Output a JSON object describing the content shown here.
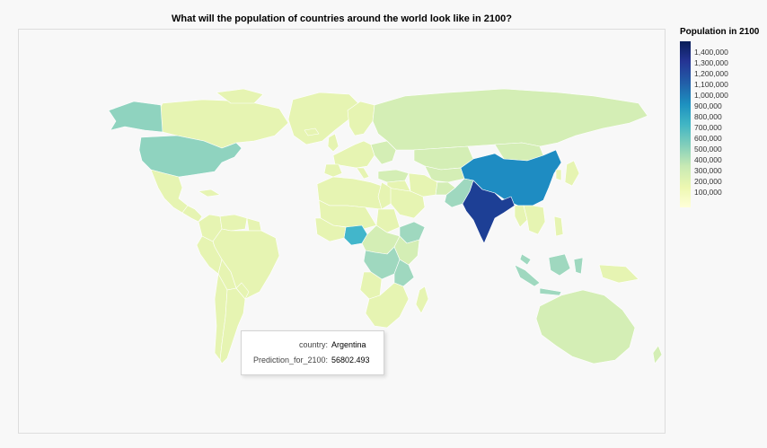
{
  "title": "What will the population of countries around the world look like in 2100?",
  "legend": {
    "title": "Population in 2100",
    "ticks": [
      "1,400,000",
      "1,300,000",
      "1,200,000",
      "1,100,000",
      "1,000,000",
      "900,000",
      "800,000",
      "700,000",
      "600,000",
      "500,000",
      "400,000",
      "300,000",
      "200,000",
      "100,000"
    ],
    "colors": [
      "#ffffd9",
      "#edf8b1",
      "#c7e9b4",
      "#7fcdbb",
      "#41b6c4",
      "#1d91c0",
      "#225ea8",
      "#253494",
      "#081d58"
    ]
  },
  "tooltip": {
    "rows": [
      {
        "key": "country:",
        "value": "Argentina"
      },
      {
        "key": "Prediction_for_2100:",
        "value": "56802.493"
      }
    ]
  },
  "map_colors": {
    "ocean": "#f8f8f8",
    "low": "#e6f4b2",
    "lowmid": "#d4eeb5",
    "mid": "#9fd8bf",
    "usa": "#8fd3bf",
    "nigeria": "#42b6cb",
    "china": "#1e8cc2",
    "india": "#1d3f95",
    "border": "#ffffff"
  }
}
